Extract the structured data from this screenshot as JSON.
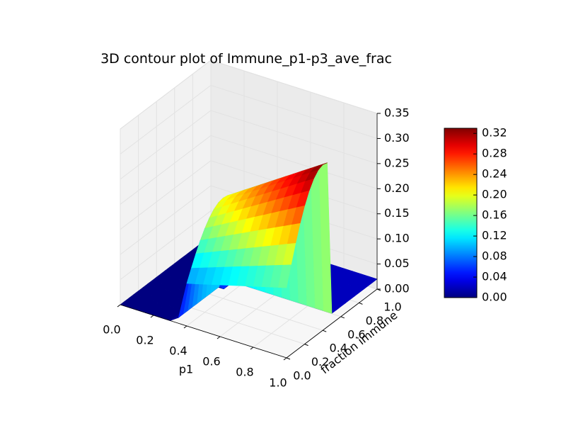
{
  "chart_data": {
    "type": "surface3d",
    "title": "3D contour plot of Immune_p1-p3_ave_frac",
    "xlabel": "p1",
    "ylabel": "fraction immune",
    "zlabel": "",
    "xlim": [
      0.0,
      1.0
    ],
    "ylim": [
      0.0,
      1.0
    ],
    "zlim": [
      0.0,
      0.35
    ],
    "x_ticks": [
      "0.0",
      "0.2",
      "0.4",
      "0.6",
      "0.8",
      "1.0"
    ],
    "y_ticks": [
      "0.0",
      "0.2",
      "0.4",
      "0.6",
      "0.8",
      "1.0"
    ],
    "z_ticks": [
      "0.00",
      "0.05",
      "0.10",
      "0.15",
      "0.20",
      "0.25",
      "0.30",
      "0.35"
    ],
    "colormap": "jet",
    "colorbar": {
      "min": 0.0,
      "max": 0.33,
      "ticks": [
        "0.00",
        "0.04",
        "0.08",
        "0.12",
        "0.16",
        "0.20",
        "0.24",
        "0.28",
        "0.32"
      ]
    },
    "x": [
      0.0,
      0.05,
      0.1,
      0.15,
      0.2,
      0.25,
      0.3,
      0.35,
      0.4,
      0.45,
      0.5,
      0.55,
      0.6,
      0.65,
      0.7,
      0.75,
      0.8,
      0.85,
      0.9,
      0.95,
      1.0
    ],
    "y": [
      0.0,
      0.05,
      0.1,
      0.15,
      0.2,
      0.25,
      0.3,
      0.35,
      0.4,
      0.45,
      0.5,
      0.55,
      0.6,
      0.65,
      0.7,
      0.75,
      0.8,
      0.85,
      0.9,
      0.95,
      1.0
    ],
    "z_description": "Surface is 0 for fraction immune > ~0.45 and p1 < ~0.35; rises to a ridge (~0.09 at low fraction immune, ~0.33 near fraction immune 0.3-0.4) for p1 >= 0.4.",
    "grid": true,
    "colorbar_placement": "right"
  }
}
